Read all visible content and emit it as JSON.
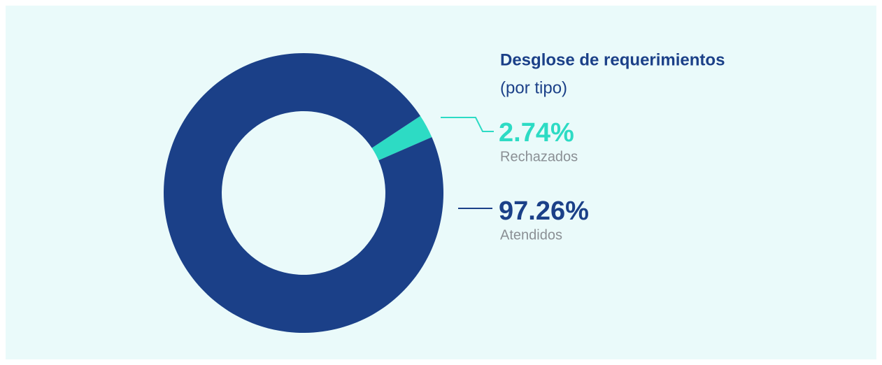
{
  "chart_data": {
    "type": "pie",
    "title": "Desglose de requerimientos",
    "subtitle": "(por tipo)",
    "categories": [
      "Rechazados",
      "Atendidos"
    ],
    "values": [
      2.74,
      97.26
    ],
    "value_labels": [
      "2.74%",
      "97.26%"
    ],
    "colors": [
      "#2ddbc4",
      "#1b4088"
    ],
    "donut": true
  }
}
